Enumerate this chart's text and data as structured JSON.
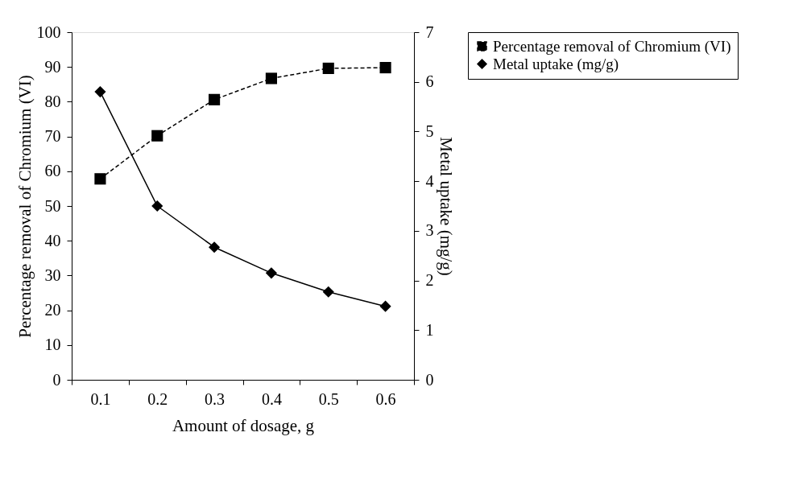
{
  "chart_data": {
    "type": "line",
    "xlabel": "Amount of dosage, g",
    "ylabel": "Percentage removal  of Chromium (VI)",
    "y2label": "Metal uptake (mg/g)",
    "categories": [
      "0.1",
      "0.2",
      "0.3",
      "0.4",
      "0.5",
      "0.6"
    ],
    "series": [
      {
        "name": "Percentage removal of Chromium (VI)",
        "color": "#000000",
        "values": [
          57.8,
          70.2,
          80.6,
          86.7,
          89.6,
          89.8
        ],
        "marker": "square",
        "line_style": "dashed"
      },
      {
        "name": "Metal uptake (mg/g)",
        "color": "#000000",
        "values": [
          5.8,
          3.5,
          2.67,
          2.15,
          1.77,
          1.48
        ],
        "axis": "y2",
        "marker": "diamond",
        "line_style": "solid"
      }
    ],
    "ylim": [
      0,
      100
    ],
    "yticks": [
      0,
      10,
      20,
      30,
      40,
      50,
      60,
      70,
      80,
      90,
      100
    ],
    "y2lim": [
      0,
      7
    ],
    "y2ticks": [
      0,
      1,
      2,
      3,
      4,
      5,
      6,
      7
    ],
    "grid": false,
    "legend": "right"
  }
}
